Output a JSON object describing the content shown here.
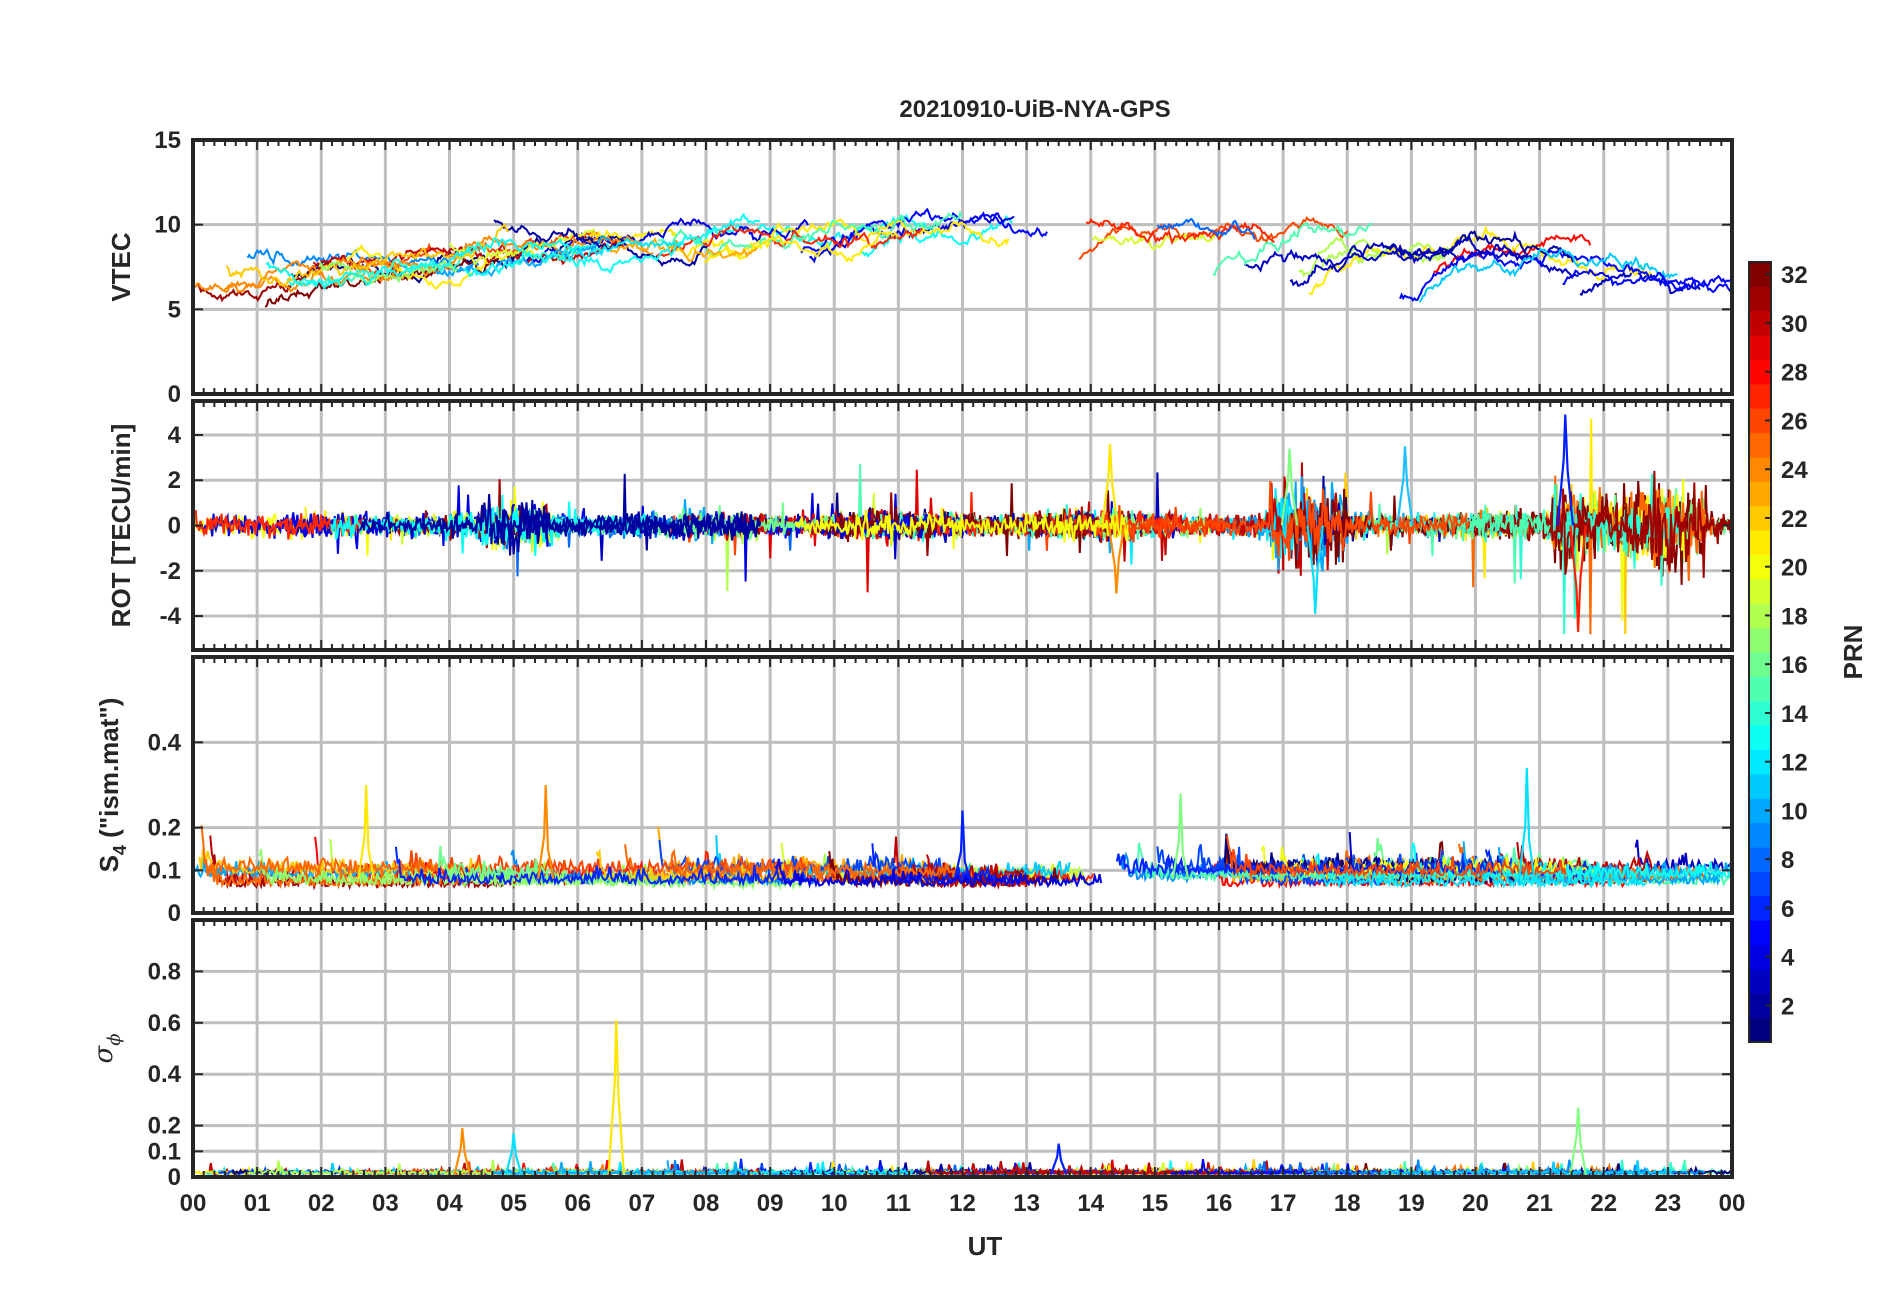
{
  "chart_data": {
    "type": "line",
    "title": "20210910-UiB-NYA-GPS",
    "xlabel": "UT",
    "xlim": [
      0,
      24
    ],
    "x_tick_labels": [
      "00",
      "01",
      "02",
      "03",
      "04",
      "05",
      "06",
      "07",
      "08",
      "09",
      "10",
      "11",
      "12",
      "13",
      "14",
      "15",
      "16",
      "17",
      "18",
      "19",
      "20",
      "21",
      "22",
      "23",
      "00"
    ],
    "colorbar": {
      "label": "PRN",
      "range": [
        1,
        32
      ],
      "ticks": [
        "2",
        "4",
        "6",
        "8",
        "10",
        "12",
        "14",
        "16",
        "18",
        "20",
        "22",
        "24",
        "26",
        "28",
        "30",
        "32"
      ],
      "colormap": "jet"
    },
    "panels": [
      {
        "id": "vtec",
        "ylabel": "VTEC",
        "ylim": [
          0,
          15
        ],
        "yticks": [
          0,
          5,
          10,
          15
        ],
        "ytick_labels": [
          "0",
          "5",
          "10",
          "15"
        ],
        "description_points": [
          [
            0,
            5.5
          ],
          [
            2,
            5.8
          ],
          [
            4,
            7.2
          ],
          [
            6,
            7.5
          ],
          [
            8,
            8.8
          ],
          [
            10,
            9.6
          ],
          [
            12,
            10.2
          ],
          [
            14,
            9.4
          ],
          [
            16,
            8.4
          ],
          [
            18,
            8.2
          ],
          [
            20,
            7.6
          ],
          [
            22,
            6.6
          ],
          [
            24,
            5.6
          ]
        ]
      },
      {
        "id": "rot",
        "ylabel": "ROT [TECU/min]",
        "ylim": [
          -5.5,
          5.5
        ],
        "yticks": [
          -4,
          -2,
          0,
          2,
          4
        ],
        "ytick_labels": [
          "-4",
          "-2",
          "0",
          "2",
          "4"
        ]
      },
      {
        "id": "s4",
        "ylabel_base": "S",
        "ylabel_sub": "4",
        "ylabel_rest": " (\"ism.mat\")",
        "ylim": [
          0,
          0.6
        ],
        "yticks": [
          0,
          0.1,
          0.2,
          0.4
        ],
        "ytick_labels": [
          "0",
          "0.1",
          "0.2",
          "0.4"
        ]
      },
      {
        "id": "sigma",
        "ylabel_base": "σ",
        "ylabel_sub": "ϕ",
        "ylim": [
          0,
          1
        ],
        "yticks": [
          0,
          0.1,
          0.2,
          0.4,
          0.6,
          0.8
        ],
        "ytick_labels": [
          "0",
          "0.1",
          "0.2",
          "0.4",
          "0.6",
          "0.8"
        ]
      }
    ],
    "notable_events": {
      "rot_spikes": [
        [
          14.3,
          3.6
        ],
        [
          14.4,
          -3.0
        ],
        [
          17.5,
          -3.9
        ],
        [
          17.1,
          3.4
        ],
        [
          21.4,
          4.9
        ],
        [
          21.6,
          -4.7
        ],
        [
          18.9,
          3.5
        ]
      ],
      "s4_peaks": [
        [
          2.7,
          0.3
        ],
        [
          5.5,
          0.3
        ],
        [
          20.8,
          0.34
        ],
        [
          15.4,
          0.28
        ],
        [
          12.0,
          0.24
        ]
      ],
      "sigma_peaks": [
        [
          6.6,
          0.61
        ],
        [
          4.2,
          0.19
        ],
        [
          5.0,
          0.17
        ],
        [
          21.6,
          0.27
        ],
        [
          13.5,
          0.13
        ]
      ]
    }
  }
}
